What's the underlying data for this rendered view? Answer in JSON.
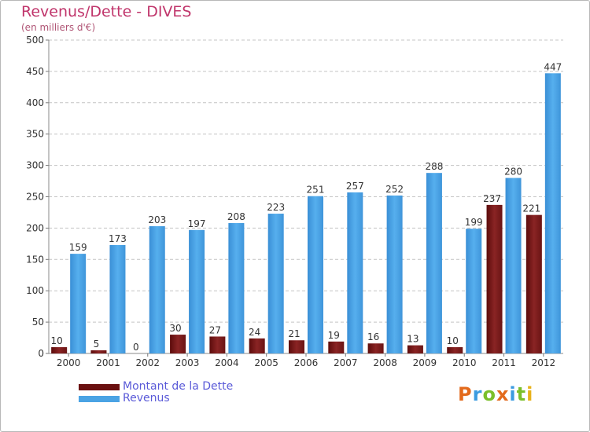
{
  "title": "Revenus/Dette - DIVES",
  "subtitle": "(en milliers d'€)",
  "colors": {
    "title": "#c0356b",
    "debt": "#7a1a1a",
    "revenue": "#4aa3e4",
    "grid": "#bfbfbf",
    "legend_text": "#5a5ad8"
  },
  "chart_data": {
    "type": "bar",
    "title": "Revenus/Dette - DIVES",
    "subtitle": "(en milliers d'€)",
    "categories": [
      "2000",
      "2001",
      "2002",
      "2003",
      "2004",
      "2005",
      "2006",
      "2007",
      "2008",
      "2009",
      "2010",
      "2011",
      "2012"
    ],
    "series": [
      {
        "name": "Montant de la Dette",
        "values": [
          10,
          5,
          0,
          30,
          27,
          24,
          21,
          19,
          16,
          13,
          10,
          237,
          221
        ]
      },
      {
        "name": "Revenus",
        "values": [
          159,
          173,
          203,
          197,
          208,
          223,
          251,
          257,
          252,
          288,
          199,
          280,
          447
        ]
      }
    ],
    "ylim": [
      0,
      500
    ],
    "yticks": [
      0,
      50,
      100,
      150,
      200,
      250,
      300,
      350,
      400,
      450,
      500
    ],
    "grid": true,
    "legend_position": "bottom-left"
  },
  "legend": {
    "debt_label": "Montant de la Dette",
    "revenue_label": "Revenus"
  },
  "logo": {
    "text": "Proxiti"
  }
}
